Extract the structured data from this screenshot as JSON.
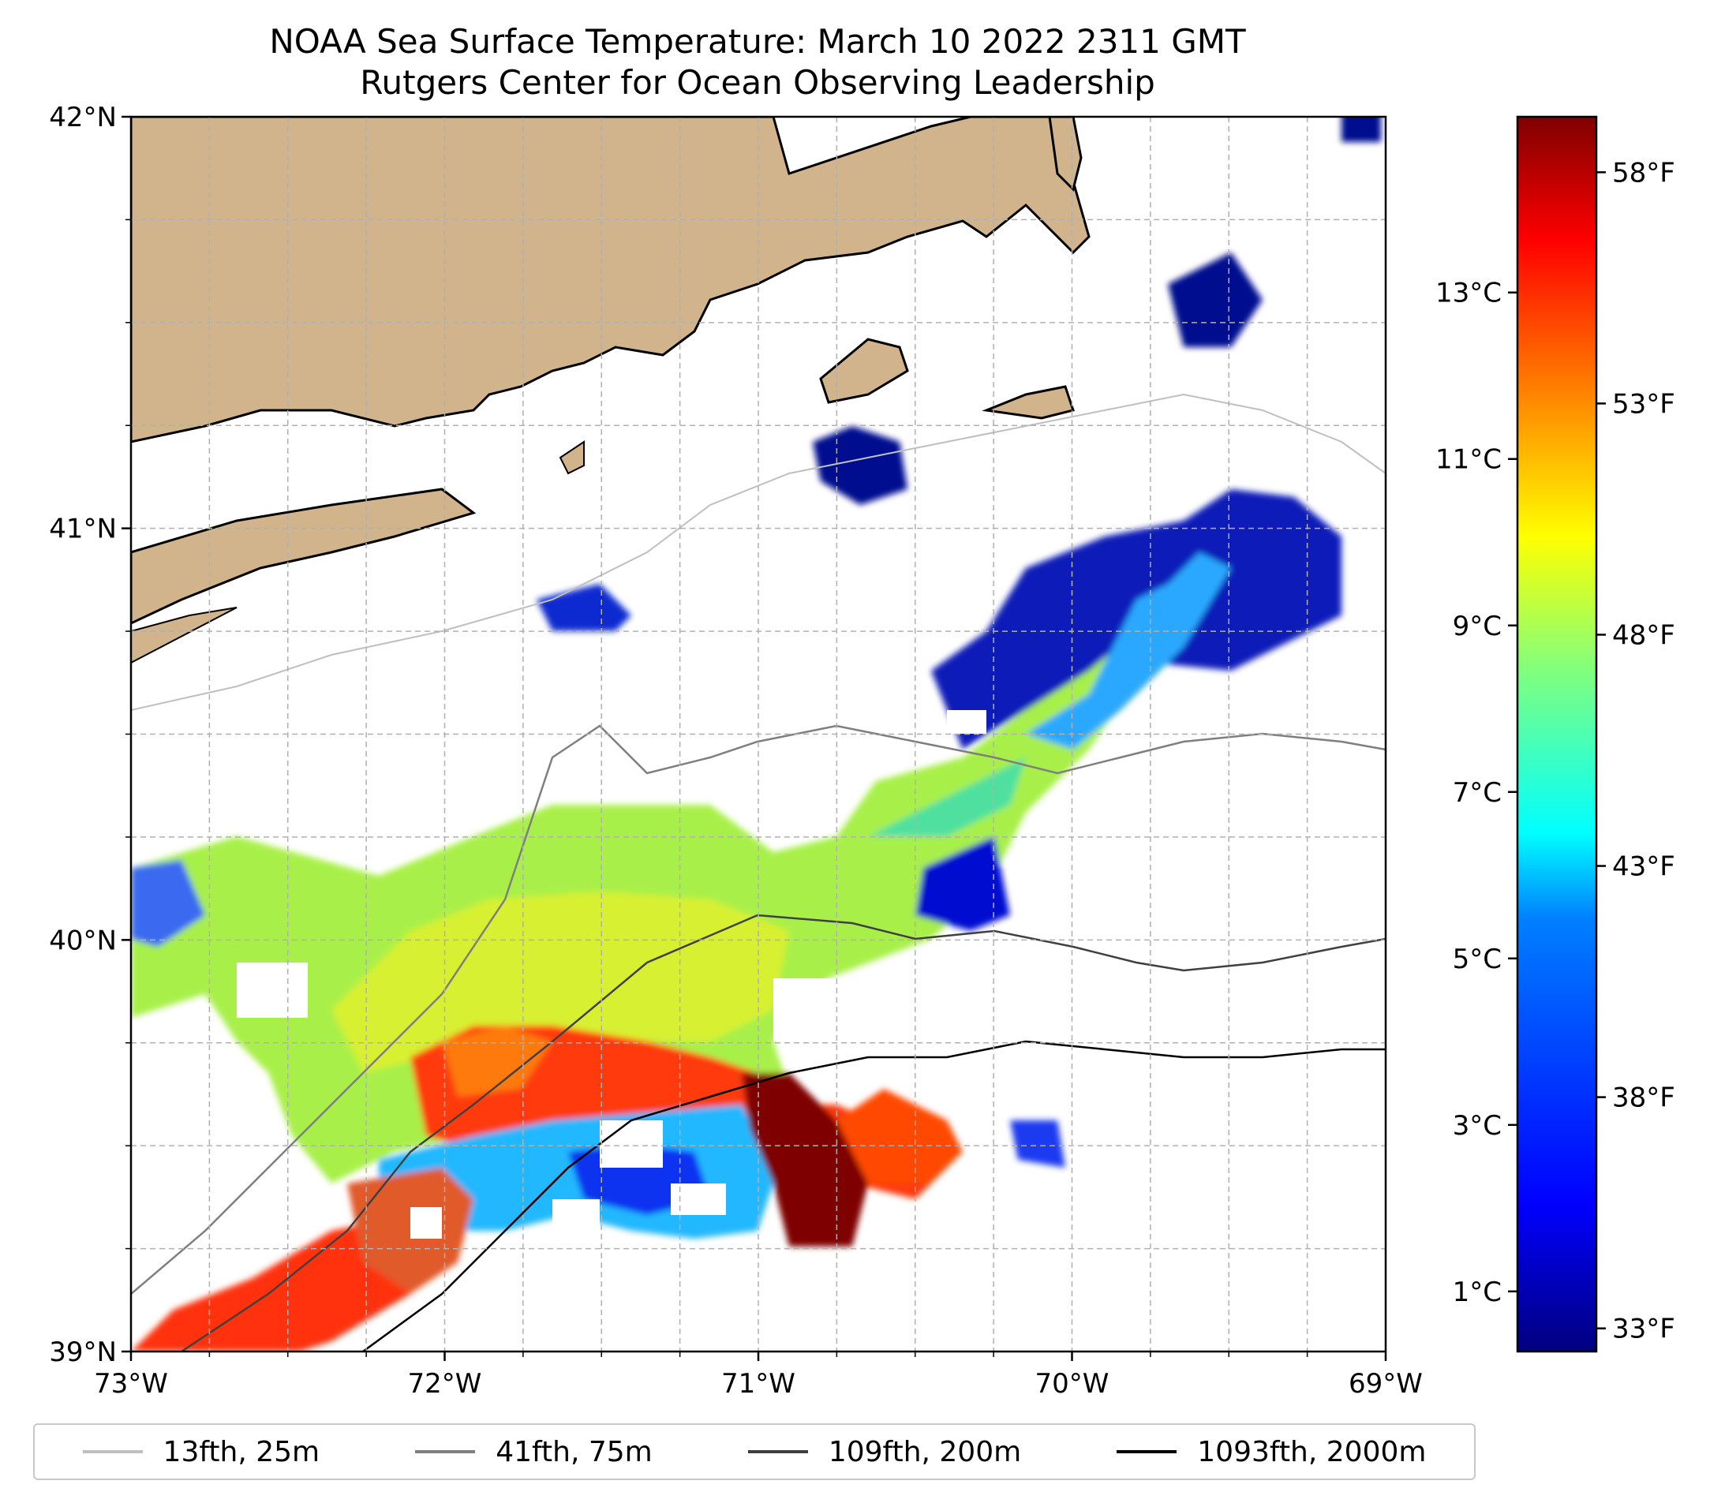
{
  "title": {
    "line1": "NOAA Sea Surface Temperature: March 10 2022 2311 GMT",
    "line2": "Rutgers Center for Ocean Observing Leadership"
  },
  "axes": {
    "lon_ticks": [
      "73°W",
      "72°W",
      "71°W",
      "70°W",
      "69°W"
    ],
    "lat_ticks": [
      "42°N",
      "41°N",
      "40°N",
      "39°N"
    ],
    "lon_range": [
      -73,
      -69
    ],
    "lat_range": [
      39,
      42
    ],
    "gridlines": true
  },
  "colorbar": {
    "colormap": "jet",
    "celsius_ticks": [
      "13°C",
      "11°C",
      "9°C",
      "7°C",
      "5°C",
      "3°C",
      "1°C"
    ],
    "fahrenheit_ticks": [
      "58°F",
      "53°F",
      "48°F",
      "43°F",
      "38°F",
      "33°F"
    ],
    "colors": [
      "#00007f",
      "#0000ff",
      "#007fff",
      "#00ffff",
      "#7fff7f",
      "#ffff00",
      "#ff7f00",
      "#ff0000",
      "#7f0000"
    ]
  },
  "legend": {
    "items": [
      {
        "label": "13fth, 25m",
        "color": "#bfbfbf"
      },
      {
        "label": "41fth, 75m",
        "color": "#7f7f7f"
      },
      {
        "label": "109fth, 200m",
        "color": "#404040"
      },
      {
        "label": "1093fth, 2000m",
        "color": "#000000"
      }
    ],
    "position": "bottom"
  },
  "colors": {
    "land": "#d2b48c",
    "grid": "#b0b0b0"
  }
}
